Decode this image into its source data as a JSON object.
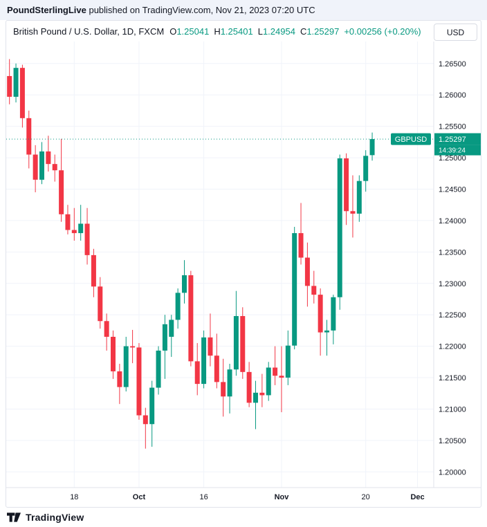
{
  "attribution": {
    "publisher": "PoundSterlingLive",
    "rest": " published on TradingView.com, Nov 21, 2023 07:20 UTC"
  },
  "header": {
    "symbol_title": "British Pound / U.S. Dollar, 1D, FXCM",
    "ohlc": [
      {
        "label": "O",
        "value": "1.25041"
      },
      {
        "label": "H",
        "value": "1.25401"
      },
      {
        "label": "L",
        "value": "1.24954"
      },
      {
        "label": "C",
        "value": "1.25297"
      }
    ],
    "change": "+0.00256 (+0.20%)",
    "currency_button": "USD"
  },
  "price_label": {
    "symbol": "GBPUSD",
    "price": "1.25297",
    "countdown": "14:39:24"
  },
  "footer": {
    "brand": "TradingView"
  },
  "colors": {
    "up": "#089981",
    "down": "#f23645",
    "grid": "#f0f3fa",
    "axis_text": "#131722",
    "border": "#e0e3eb",
    "label_text": "#ffffff"
  },
  "chart_data": {
    "type": "candlestick",
    "title": "British Pound / U.S. Dollar, 1D, FXCM",
    "symbol": "GBPUSD",
    "interval": "1D",
    "exchange": "FXCM",
    "grid": true,
    "ylim": [
      1.1975,
      1.2685
    ],
    "yticks": [
      1.2,
      1.205,
      1.21,
      1.215,
      1.22,
      1.225,
      1.23,
      1.235,
      1.24,
      1.245,
      1.25,
      1.255,
      1.26,
      1.265
    ],
    "total_slots": 66,
    "xticks": [
      {
        "index": 10,
        "label": "18",
        "bold": false
      },
      {
        "index": 20,
        "label": "Oct",
        "bold": true
      },
      {
        "index": 30,
        "label": "16",
        "bold": false
      },
      {
        "index": 42,
        "label": "Nov",
        "bold": true
      },
      {
        "index": 55,
        "label": "20",
        "bold": false
      },
      {
        "index": 63,
        "label": "Dec",
        "bold": true
      }
    ],
    "last_price": 1.25297,
    "current": {
      "open": 1.25041,
      "high": 1.25401,
      "low": 1.24954,
      "close": 1.25297,
      "change": "+0.00256 (+0.20%)"
    },
    "candles_format": [
      "date",
      "open",
      "high",
      "low",
      "close"
    ],
    "candles": [
      [
        "Sep 4",
        1.263,
        1.2657,
        1.2585,
        1.2597
      ],
      [
        "Sep 5",
        1.2597,
        1.265,
        1.2588,
        1.2643
      ],
      [
        "Sep 6",
        1.2643,
        1.2648,
        1.2548,
        1.2563
      ],
      [
        "Sep 7",
        1.2563,
        1.2575,
        1.2483,
        1.2505
      ],
      [
        "Sep 8",
        1.2505,
        1.252,
        1.2445,
        1.2465
      ],
      [
        "Sep 11",
        1.2465,
        1.2525,
        1.2458,
        1.251
      ],
      [
        "Sep 12",
        1.251,
        1.2535,
        1.2478,
        1.249
      ],
      [
        "Sep 13",
        1.249,
        1.2505,
        1.2462,
        1.248
      ],
      [
        "Sep 14",
        1.248,
        1.253,
        1.2398,
        1.241
      ],
      [
        "Sep 15",
        1.241,
        1.2425,
        1.2378,
        1.2385
      ],
      [
        "Sep 18",
        1.2385,
        1.242,
        1.2368,
        1.238
      ],
      [
        "Sep 19",
        1.238,
        1.2425,
        1.2368,
        1.2395
      ],
      [
        "Sep 20",
        1.2395,
        1.242,
        1.233,
        1.2345
      ],
      [
        "Sep 21",
        1.2345,
        1.2355,
        1.2278,
        1.2295
      ],
      [
        "Sep 22",
        1.2295,
        1.231,
        1.2228,
        1.224
      ],
      [
        "Sep 25",
        1.224,
        1.2252,
        1.2193,
        1.2215
      ],
      [
        "Sep 26",
        1.2215,
        1.2225,
        1.2148,
        1.216
      ],
      [
        "Sep 27",
        1.216,
        1.2172,
        1.2108,
        1.2135
      ],
      [
        "Sep 28",
        1.2135,
        1.2215,
        1.2128,
        1.22
      ],
      [
        "Sep 29",
        1.22,
        1.2226,
        1.2173,
        1.2198
      ],
      [
        "Oct 2",
        1.2198,
        1.2205,
        1.2083,
        1.209
      ],
      [
        "Oct 3",
        1.209,
        1.2102,
        1.2037,
        1.2076
      ],
      [
        "Oct 4",
        1.2076,
        1.2145,
        1.204,
        1.2134
      ],
      [
        "Oct 5",
        1.2134,
        1.22,
        1.2123,
        1.2193
      ],
      [
        "Oct 6",
        1.2193,
        1.225,
        1.2148,
        1.2235
      ],
      [
        "Oct 9",
        1.2215,
        1.225,
        1.2183,
        1.2242
      ],
      [
        "Oct 10",
        1.2242,
        1.2292,
        1.2228,
        1.2285
      ],
      [
        "Oct 11",
        1.2285,
        1.2337,
        1.2268,
        1.2313
      ],
      [
        "Oct 12",
        1.2313,
        1.232,
        1.2168,
        1.2176
      ],
      [
        "Oct 13",
        1.2176,
        1.2205,
        1.2122,
        1.214
      ],
      [
        "Oct 16",
        1.214,
        1.2225,
        1.2133,
        1.2214
      ],
      [
        "Oct 17",
        1.2214,
        1.2252,
        1.2168,
        1.2185
      ],
      [
        "Oct 18",
        1.2185,
        1.222,
        1.2133,
        1.2143
      ],
      [
        "Oct 19",
        1.2143,
        1.218,
        1.2088,
        1.212
      ],
      [
        "Oct 20",
        1.212,
        1.2172,
        1.2093,
        1.2163
      ],
      [
        "Oct 23",
        1.2163,
        1.2288,
        1.2153,
        1.2248
      ],
      [
        "Oct 24",
        1.2248,
        1.2262,
        1.2148,
        1.2159
      ],
      [
        "Oct 25",
        1.2159,
        1.2175,
        1.2103,
        1.211
      ],
      [
        "Oct 26",
        1.211,
        1.2145,
        1.2068,
        1.2126
      ],
      [
        "Oct 27",
        1.2126,
        1.2156,
        1.2103,
        1.2122
      ],
      [
        "Oct 30",
        1.2122,
        1.2175,
        1.2113,
        1.2166
      ],
      [
        "Oct 31",
        1.2166,
        1.22,
        1.2138,
        1.2153
      ],
      [
        "Nov 1",
        1.2153,
        1.22,
        1.2095,
        1.215
      ],
      [
        "Nov 2",
        1.215,
        1.2225,
        1.2138,
        1.2201
      ],
      [
        "Nov 3",
        1.2201,
        1.239,
        1.2195,
        1.238
      ],
      [
        "Nov 6",
        1.238,
        1.2428,
        1.233,
        1.2341
      ],
      [
        "Nov 7",
        1.2341,
        1.2365,
        1.2263,
        1.2296
      ],
      [
        "Nov 8",
        1.2296,
        1.232,
        1.2268,
        1.2282
      ],
      [
        "Nov 9",
        1.2282,
        1.2292,
        1.2185,
        1.2222
      ],
      [
        "Nov 10",
        1.2222,
        1.2242,
        1.2185,
        1.2225
      ],
      [
        "Nov 13",
        1.2225,
        1.2282,
        1.2203,
        1.2278
      ],
      [
        "Nov 14",
        1.2278,
        1.2505,
        1.2258,
        1.2499
      ],
      [
        "Nov 15",
        1.2499,
        1.2507,
        1.2393,
        1.2415
      ],
      [
        "Nov 16",
        1.2415,
        1.2472,
        1.2373,
        1.2411
      ],
      [
        "Nov 17",
        1.2411,
        1.2472,
        1.2398,
        1.2463
      ],
      [
        "Nov 20",
        1.2463,
        1.2512,
        1.2446,
        1.2503
      ],
      [
        "Nov 21",
        1.25041,
        1.25401,
        1.24954,
        1.25297
      ]
    ]
  }
}
